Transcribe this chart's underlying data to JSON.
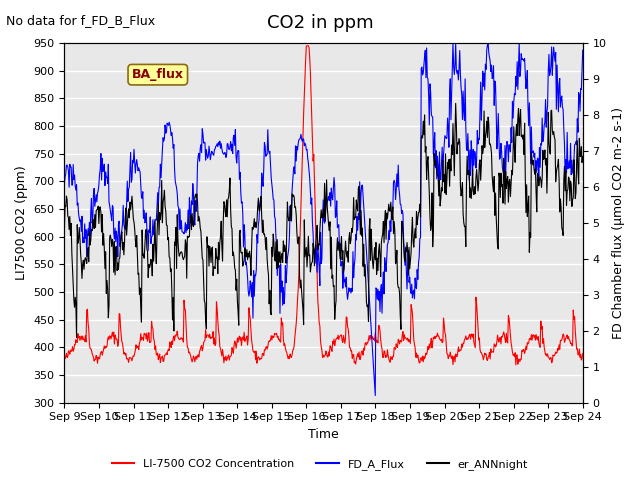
{
  "title": "CO2 in ppm",
  "note": "No data for f_FD_B_Flux",
  "ba_flux_label": "BA_flux",
  "xlabel": "Time",
  "ylabel_left": "LI7500 CO2 (ppm)",
  "ylabel_right": "FD Chamber flux (μmol CO2 m-2 s-1)",
  "ylim_left": [
    300,
    950
  ],
  "ylim_right": [
    0.0,
    10.0
  ],
  "yticks_left": [
    300,
    350,
    400,
    450,
    500,
    550,
    600,
    650,
    700,
    750,
    800,
    850,
    900,
    950
  ],
  "yticks_right": [
    0.0,
    1.0,
    2.0,
    3.0,
    4.0,
    5.0,
    6.0,
    7.0,
    8.0,
    9.0,
    10.0
  ],
  "xtick_labels": [
    "Sep 9",
    "Sep 10",
    "Sep 11",
    "Sep 12",
    "Sep 13",
    "Sep 14",
    "Sep 15",
    "Sep 16",
    "Sep 17",
    "Sep 18",
    "Sep 19",
    "Sep 20",
    "Sep 21",
    "Sep 22",
    "Sep 23",
    "Sep 24"
  ],
  "n_days": 16,
  "color_red": "#FF0000",
  "color_blue": "#0000FF",
  "color_black": "#000000",
  "legend_labels": [
    "LI-7500 CO2 Concentration",
    "FD_A_Flux",
    "er_ANNnight"
  ],
  "bg_color": "#E8E8E8",
  "grid_color": "#FFFFFF",
  "ba_flux_box_color": "#FFFF99",
  "ba_flux_text_color": "#8B0000",
  "title_fontsize": 13,
  "note_fontsize": 9,
  "label_fontsize": 9,
  "tick_fontsize": 8
}
